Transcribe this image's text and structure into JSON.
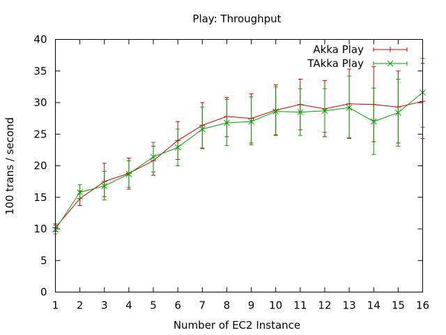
{
  "chart_data": {
    "type": "line",
    "title": "Play: Throughput",
    "xlabel": "Number of EC2 Instance",
    "ylabel": "100 trans / second",
    "xlim": [
      1,
      16
    ],
    "ylim": [
      0,
      40
    ],
    "x_ticks": [
      1,
      2,
      3,
      4,
      5,
      6,
      7,
      8,
      9,
      10,
      11,
      12,
      13,
      14,
      15,
      16
    ],
    "y_ticks": [
      0,
      5,
      10,
      15,
      20,
      25,
      30,
      35,
      40
    ],
    "grid": false,
    "legend_position": "top-right",
    "x": [
      1,
      2,
      3,
      4,
      5,
      6,
      7,
      8,
      9,
      10,
      11,
      12,
      13,
      14,
      15,
      16
    ],
    "series": [
      {
        "name": "Akka Play",
        "color": "#cc0000",
        "marker": "plus",
        "values": [
          10.2,
          14.8,
          17.5,
          18.8,
          20.8,
          24.0,
          26.4,
          27.8,
          27.5,
          28.8,
          29.7,
          29.0,
          29.8,
          29.7,
          29.3,
          30.2
        ],
        "err_low": [
          9.6,
          13.7,
          15.1,
          16.3,
          18.5,
          21.0,
          22.8,
          24.6,
          23.6,
          24.9,
          25.7,
          24.6,
          24.4,
          23.8,
          23.6,
          24.3
        ],
        "err_high": [
          10.8,
          16.0,
          20.4,
          21.2,
          23.1,
          27.0,
          30.0,
          30.8,
          31.4,
          32.8,
          33.7,
          33.5,
          35.3,
          35.7,
          35.0,
          36.2
        ]
      },
      {
        "name": "TAkka Play",
        "color": "#00a000",
        "marker": "x",
        "values": [
          9.9,
          15.8,
          16.8,
          18.7,
          21.4,
          22.9,
          25.8,
          26.8,
          27.0,
          28.6,
          28.5,
          28.7,
          29.2,
          27.0,
          28.4,
          31.6
        ],
        "err_low": [
          9.2,
          14.8,
          14.6,
          16.6,
          19.0,
          20.0,
          22.7,
          23.2,
          23.3,
          24.8,
          24.8,
          25.3,
          24.3,
          21.8,
          23.1,
          26.1
        ],
        "err_high": [
          10.6,
          17.0,
          19.1,
          20.8,
          23.7,
          25.8,
          29.3,
          30.5,
          30.9,
          32.5,
          32.2,
          32.2,
          34.2,
          32.3,
          33.7,
          37.0
        ]
      }
    ]
  }
}
